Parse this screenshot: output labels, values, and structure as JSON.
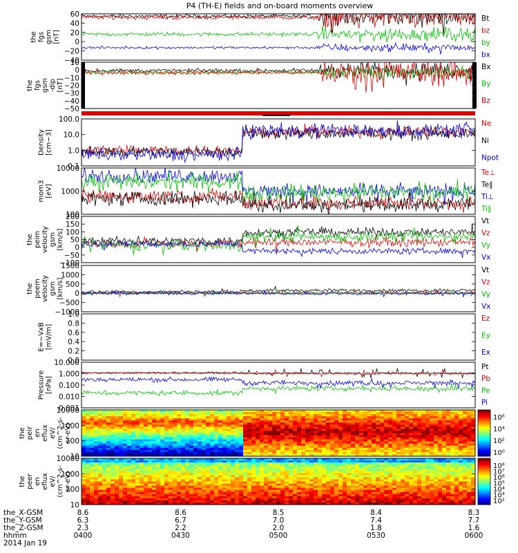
{
  "title": "P4 (TH-E) fields and on-board moments overview",
  "date_label": "2014 Jan 19",
  "ephemeris": {
    "row_labels": [
      "the_X-GSM",
      "the_Y-GSM",
      "the_Z-GSM",
      "hhmm"
    ],
    "columns": [
      {
        "time": "0400",
        "x": "8.6",
        "y": "6.3",
        "z": "2.3"
      },
      {
        "time": "0430",
        "x": "8.6",
        "y": "6.7",
        "z": "2.2"
      },
      {
        "time": "0500",
        "x": "8.5",
        "y": "7.0",
        "z": "2.0"
      },
      {
        "time": "0530",
        "x": "8.4",
        "y": "7.4",
        "z": "1.8"
      },
      {
        "time": "0600",
        "x": "8.3",
        "y": "7.7",
        "z": "1.6"
      }
    ]
  },
  "colors": {
    "black": "#000000",
    "red": "#e00000",
    "green": "#00c000",
    "blue": "#0000e0"
  },
  "chart_data": [
    {
      "type": "line",
      "ylabel": [
        "the",
        "fgs",
        "gsm",
        "[nT]"
      ],
      "yticks": [
        "60",
        "40",
        "20",
        "0",
        "−20",
        "−40"
      ],
      "ylim": [
        -40,
        60
      ],
      "yscale": "linear",
      "series": [
        {
          "name": "Bt",
          "color": "black",
          "base": 55,
          "noise": 3,
          "late_noise": 14
        },
        {
          "name": "bz",
          "color": "red",
          "base": 52,
          "noise": 3,
          "late_noise": 16
        },
        {
          "name": "by",
          "color": "green",
          "base": 16,
          "noise": 3,
          "late_noise": 10
        },
        {
          "name": "bx",
          "color": "blue",
          "base": -13,
          "noise": 2,
          "late_noise": 6
        }
      ]
    },
    {
      "type": "line",
      "ylabel": [
        "the",
        "fgs",
        "gsm",
        "-dip",
        "[nT]"
      ],
      "yticks": [
        "10",
        "0",
        "−10",
        "−20",
        "−30",
        "−40",
        "−50"
      ],
      "ylim": [
        -55,
        12
      ],
      "yscale": "linear",
      "series": [
        {
          "name": "Bx",
          "color": "black",
          "base": 0,
          "noise": 2,
          "late_noise": 8
        },
        {
          "name": "By",
          "color": "green",
          "base": -3,
          "noise": 2,
          "late_noise": 6
        },
        {
          "name": "Bz",
          "color": "red",
          "base": -3,
          "noise": 2,
          "late_noise": 14
        }
      ]
    },
    {
      "type": "line",
      "ylabel": [
        "Density",
        "[cm−3]"
      ],
      "yticks": [
        "100.0",
        "10.0",
        "1.0",
        "0.1"
      ],
      "ylim": [
        0.1,
        100
      ],
      "yscale": "log",
      "series": [
        {
          "name": "Ne",
          "color": "red",
          "early": 1.0,
          "late": 15,
          "noise": 0.25
        },
        {
          "name": "Ni",
          "color": "black",
          "early": 0.8,
          "late": 12,
          "noise": 0.25
        },
        {
          "name": "Npot",
          "color": "blue",
          "early": 0.5,
          "late": 18,
          "noise": 0.3
        }
      ]
    },
    {
      "type": "line",
      "ylabel": [
        "mom3",
        "[eV]"
      ],
      "yticks": [
        "10000",
        "1000",
        "100"
      ],
      "ylim": [
        50,
        10000
      ],
      "yscale": "log",
      "series": [
        {
          "name": "Te⊥",
          "color": "red",
          "early": 400,
          "late": 180,
          "noise": 0.25
        },
        {
          "name": "Te∥",
          "color": "black",
          "early": 300,
          "late": 150,
          "noise": 0.25
        },
        {
          "name": "Ti⊥",
          "color": "blue",
          "early": 4000,
          "late": 700,
          "noise": 0.25
        },
        {
          "name": "Ti∥",
          "color": "green",
          "early": 2000,
          "late": 600,
          "noise": 0.3
        }
      ]
    },
    {
      "type": "line",
      "ylabel": [
        "the",
        "peim",
        "velocity",
        "gsm",
        "[km/s]"
      ],
      "yticks": [
        "200",
        "150",
        "100",
        "50",
        "0",
        "−50",
        "−100"
      ],
      "ylim": [
        -120,
        200
      ],
      "yscale": "linear",
      "series": [
        {
          "name": "Vt",
          "color": "black",
          "early": 30,
          "late": 90,
          "noise": 20
        },
        {
          "name": "Vz",
          "color": "red",
          "early": 10,
          "late": 20,
          "noise": 20
        },
        {
          "name": "Vy",
          "color": "green",
          "early": 0,
          "late": 60,
          "noise": 25
        },
        {
          "name": "Vx",
          "color": "blue",
          "early": 10,
          "late": -40,
          "noise": 15
        }
      ]
    },
    {
      "type": "line",
      "ylabel": [
        "the",
        "peem",
        "velocity",
        "gsm",
        "[km/s]"
      ],
      "yticks": [
        "1500",
        "1000",
        "500",
        "0",
        "−500",
        "−1000"
      ],
      "ylim": [
        -1000,
        1500
      ],
      "yscale": "linear",
      "series": [
        {
          "name": "Vt",
          "color": "black",
          "early": 80,
          "late": 150,
          "noise": 60
        },
        {
          "name": "Vz",
          "color": "red",
          "early": 0,
          "late": 20,
          "noise": 50
        },
        {
          "name": "Vy",
          "color": "green",
          "early": 0,
          "late": 10,
          "noise": 40
        },
        {
          "name": "Vx",
          "color": "blue",
          "early": 0,
          "late": -20,
          "noise": 60
        }
      ]
    },
    {
      "type": "line",
      "ylabel": [
        "E=−VxB",
        "[mV/m]"
      ],
      "yticks": [
        "1.0",
        "0.8",
        "0.6",
        "0.4",
        "0.2",
        "0.0"
      ],
      "ylim": [
        0,
        1
      ],
      "yscale": "linear",
      "series": [
        {
          "name": "Ez",
          "color": "red"
        },
        {
          "name": "Ey",
          "color": "green"
        },
        {
          "name": "Ex",
          "color": "blue"
        }
      ]
    },
    {
      "type": "line",
      "ylabel": [
        "Pressure",
        "[nPa]"
      ],
      "yticks": [
        "10.000",
        "1.000",
        "0.100",
        "0.010",
        "0.001"
      ],
      "ylim": [
        0.001,
        10
      ],
      "yscale": "log",
      "series": [
        {
          "name": "Pt",
          "color": "black",
          "early": 1.2,
          "late": 1.1,
          "noise": 0.05
        },
        {
          "name": "Pb",
          "color": "red",
          "early": 1.1,
          "late": 1.0,
          "noise": 0.05
        },
        {
          "name": "Pe",
          "color": "green",
          "early": 0.02,
          "late": 0.05,
          "noise": 0.15
        },
        {
          "name": "Pi",
          "color": "blue",
          "early": 0.3,
          "late": 0.15,
          "noise": 0.15
        }
      ]
    },
    {
      "type": "heatmap",
      "ylabel": [
        "the",
        "peir",
        "en",
        "eflux",
        "eV/",
        "(cm^2-s-",
        "sr-eV)"
      ],
      "yticks": [
        "10000",
        "1000",
        "100",
        "10"
      ],
      "ylim": [
        5,
        20000
      ],
      "yscale": "log",
      "colorbar": {
        "ticks": [
          "10⁶",
          "10⁴",
          "10²",
          "10⁰"
        ]
      }
    },
    {
      "type": "heatmap",
      "ylabel": [
        "the",
        "peer",
        "en",
        "eflux",
        "eV/",
        "(cm^2-s-",
        "sr-eV)"
      ],
      "yticks": [
        "10000",
        "1000",
        "100",
        "10"
      ],
      "ylim": [
        5,
        20000
      ],
      "yscale": "log",
      "colorbar": {
        "ticks": [
          "10⁸",
          "10⁷",
          "10⁶",
          "10⁵",
          "10⁴",
          "10³",
          "10²"
        ]
      }
    }
  ]
}
